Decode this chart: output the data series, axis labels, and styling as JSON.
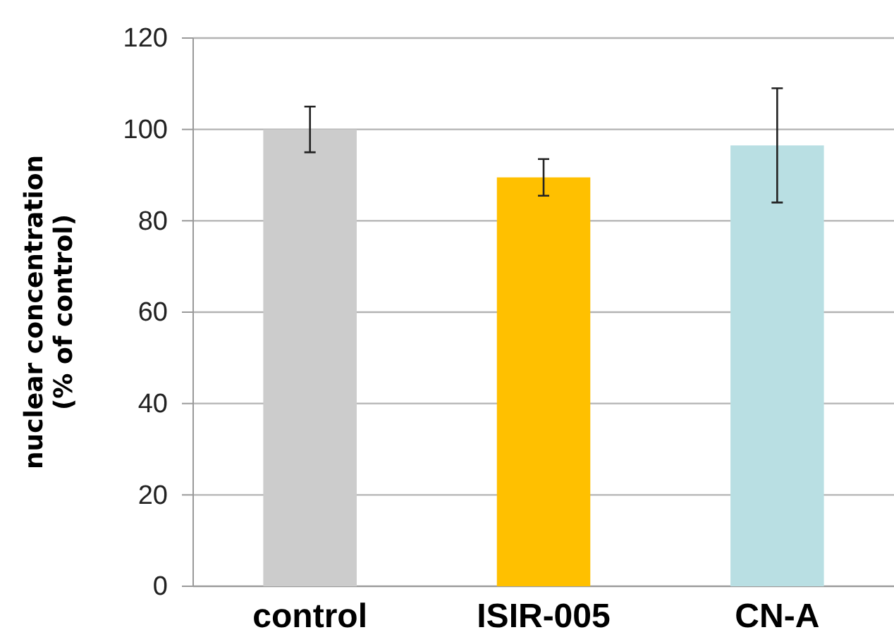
{
  "chart_data": {
    "type": "bar",
    "ylabel": "nuclear concentration\n(% of control)",
    "categories": [
      "control",
      "ISIR-005",
      "CN-A"
    ],
    "values": [
      100,
      89.5,
      96.5
    ],
    "colors": [
      "#cccccc",
      "#ffc000",
      "#b9dfe3"
    ],
    "errors": [
      5,
      4,
      12.5
    ],
    "ylim": [
      0,
      120
    ],
    "yticks": [
      0,
      20,
      40,
      60,
      80,
      100,
      120
    ],
    "grid": "y"
  }
}
